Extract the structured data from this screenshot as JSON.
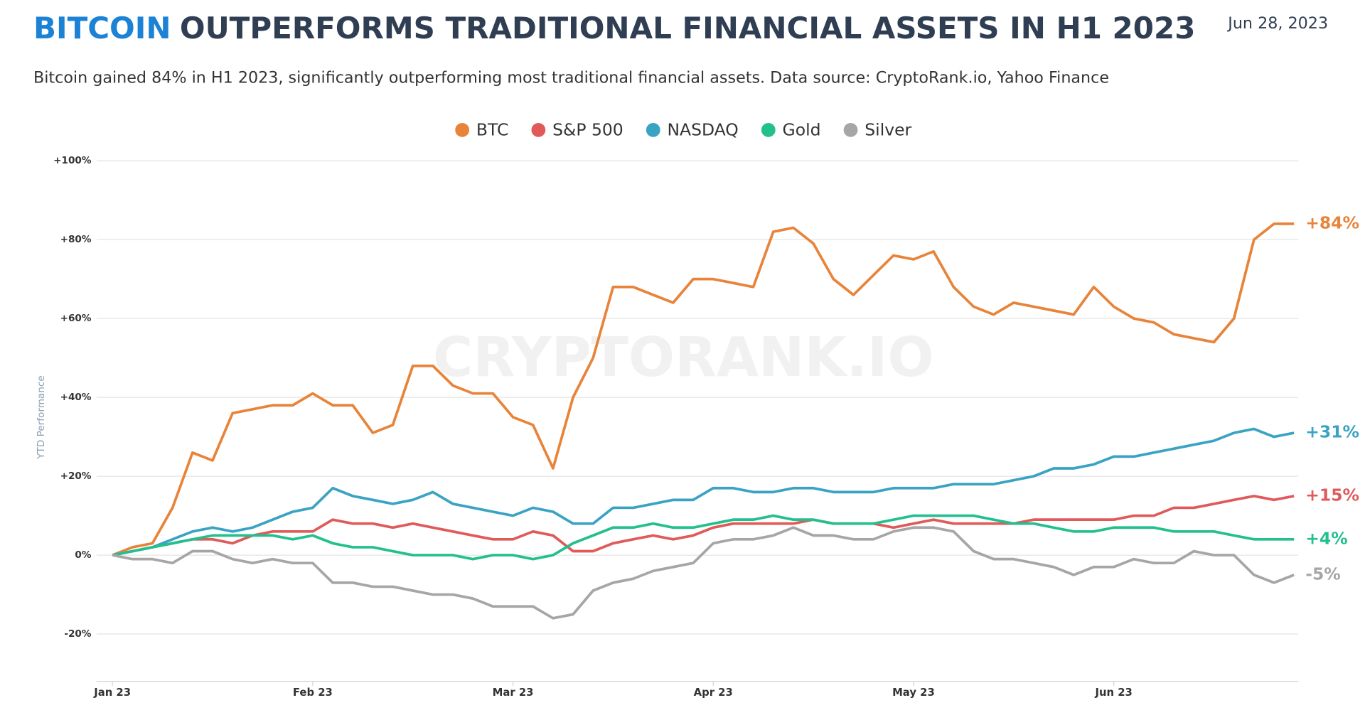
{
  "chart_data": {
    "type": "line",
    "title_highlight": "BITCOIN",
    "title": "OUTPERFORMS TRADITIONAL FINANCIAL ASSETS IN H1 2023",
    "date": "Jun 28, 2023",
    "subtitle": "Bitcoin gained 84% in H1 2023, significantly outperforming most traditional financial assets. Data source: CryptoRank.io, Yahoo Finance",
    "watermark": "CRYPTORANK.IO",
    "y_label": "YTD Performance",
    "grid": true,
    "legend": "top",
    "categories": [
      "Jan 23",
      null,
      null,
      null,
      null,
      null,
      null,
      null,
      null,
      null,
      "Feb 23",
      null,
      null,
      null,
      null,
      null,
      null,
      null,
      null,
      null,
      "Mar 23",
      null,
      null,
      null,
      null,
      null,
      null,
      null,
      null,
      null,
      "Apr 23",
      null,
      null,
      null,
      null,
      null,
      null,
      null,
      null,
      null,
      "May 23",
      null,
      null,
      null,
      null,
      null,
      null,
      null,
      null,
      null,
      "Jun 23",
      null,
      null,
      null,
      null,
      null,
      null,
      null,
      null,
      null
    ],
    "ylim": [
      -32,
      100
    ],
    "yticks": [
      {
        "value": -20,
        "label": "-20%"
      },
      {
        "value": 0,
        "label": "0%"
      },
      {
        "value": 20,
        "label": "+20%"
      },
      {
        "value": 40,
        "label": "+40%"
      },
      {
        "value": 60,
        "label": "+60%"
      },
      {
        "value": 80,
        "label": "+80%"
      },
      {
        "value": 100,
        "label": "+100%"
      }
    ],
    "series": [
      {
        "name": "BTC",
        "color": "#e8843a",
        "values": [
          0,
          2,
          3,
          12,
          26,
          24,
          36,
          37,
          38,
          38,
          41,
          38,
          38,
          31,
          33,
          48,
          48,
          43,
          41,
          41,
          35,
          33,
          22,
          40,
          50,
          68,
          68,
          66,
          64,
          70,
          70,
          69,
          68,
          82,
          83,
          79,
          70,
          66,
          71,
          76,
          75,
          77,
          68,
          63,
          61,
          64,
          63,
          62,
          61,
          68,
          63,
          60,
          59,
          56,
          55,
          54,
          60,
          80,
          84,
          84
        ],
        "value_labels": [
          null,
          null,
          null,
          null,
          null,
          null,
          null,
          null,
          null,
          null,
          null,
          null,
          null,
          null,
          null,
          null,
          null,
          null,
          null,
          null,
          null,
          null,
          null,
          null,
          null,
          null,
          null,
          null,
          null,
          null,
          null,
          null,
          null,
          null,
          null,
          null,
          null,
          null,
          null,
          null,
          null,
          null,
          null,
          null,
          null,
          null,
          null,
          null,
          null,
          null,
          null,
          null,
          null,
          null,
          null,
          null,
          null,
          null,
          null,
          "+84%"
        ]
      },
      {
        "name": "S&P 500",
        "color": "#e05a5a",
        "values": [
          0,
          1,
          2,
          3,
          4,
          4,
          3,
          5,
          6,
          6,
          6,
          9,
          8,
          8,
          7,
          8,
          7,
          6,
          5,
          4,
          4,
          6,
          5,
          1,
          1,
          3,
          4,
          5,
          4,
          5,
          7,
          8,
          8,
          8,
          8,
          9,
          8,
          8,
          8,
          7,
          8,
          9,
          8,
          8,
          8,
          8,
          9,
          9,
          9,
          9,
          9,
          10,
          10,
          12,
          12,
          13,
          14,
          15,
          14,
          15
        ],
        "value_labels": [
          null,
          null,
          null,
          null,
          null,
          null,
          null,
          null,
          null,
          null,
          null,
          null,
          null,
          null,
          null,
          null,
          null,
          null,
          null,
          null,
          null,
          null,
          null,
          null,
          null,
          null,
          null,
          null,
          null,
          null,
          null,
          null,
          null,
          null,
          null,
          null,
          null,
          null,
          null,
          null,
          null,
          null,
          null,
          null,
          null,
          null,
          null,
          null,
          null,
          null,
          null,
          null,
          null,
          null,
          null,
          null,
          null,
          null,
          null,
          "+15%"
        ]
      },
      {
        "name": "NASDAQ",
        "color": "#3aa3c4",
        "values": [
          0,
          1,
          2,
          4,
          6,
          7,
          6,
          7,
          9,
          11,
          12,
          17,
          15,
          14,
          13,
          14,
          16,
          13,
          12,
          11,
          10,
          12,
          11,
          8,
          8,
          12,
          12,
          13,
          14,
          14,
          17,
          17,
          16,
          16,
          17,
          17,
          16,
          16,
          16,
          17,
          17,
          17,
          18,
          18,
          18,
          19,
          20,
          22,
          22,
          23,
          25,
          25,
          26,
          27,
          28,
          29,
          31,
          32,
          30,
          31
        ],
        "value_labels": [
          null,
          null,
          null,
          null,
          null,
          null,
          null,
          null,
          null,
          null,
          null,
          null,
          null,
          null,
          null,
          null,
          null,
          null,
          null,
          null,
          null,
          null,
          null,
          null,
          null,
          null,
          null,
          null,
          null,
          null,
          null,
          null,
          null,
          null,
          null,
          null,
          null,
          null,
          null,
          null,
          null,
          null,
          null,
          null,
          null,
          null,
          null,
          null,
          null,
          null,
          null,
          null,
          null,
          null,
          null,
          null,
          null,
          null,
          null,
          "+31%"
        ]
      },
      {
        "name": "Gold",
        "color": "#22c08e",
        "values": [
          0,
          1,
          2,
          3,
          4,
          5,
          5,
          5,
          5,
          4,
          5,
          3,
          2,
          2,
          1,
          0,
          0,
          0,
          -1,
          0,
          0,
          -1,
          0,
          3,
          5,
          7,
          7,
          8,
          7,
          7,
          8,
          9,
          9,
          10,
          9,
          9,
          8,
          8,
          8,
          9,
          10,
          10,
          10,
          10,
          9,
          8,
          8,
          7,
          6,
          6,
          7,
          7,
          7,
          6,
          6,
          6,
          5,
          4,
          4,
          4
        ],
        "value_labels": [
          null,
          null,
          null,
          null,
          null,
          null,
          null,
          null,
          null,
          null,
          null,
          null,
          null,
          null,
          null,
          null,
          null,
          null,
          null,
          null,
          null,
          null,
          null,
          null,
          null,
          null,
          null,
          null,
          null,
          null,
          null,
          null,
          null,
          null,
          null,
          null,
          null,
          null,
          null,
          null,
          null,
          null,
          null,
          null,
          null,
          null,
          null,
          null,
          null,
          null,
          null,
          null,
          null,
          null,
          null,
          null,
          null,
          null,
          null,
          "+4%"
        ]
      },
      {
        "name": "Silver",
        "color": "#a6a6a6",
        "values": [
          0,
          -1,
          -1,
          -2,
          1,
          1,
          -1,
          -2,
          -1,
          -2,
          -2,
          -7,
          -7,
          -8,
          -8,
          -9,
          -10,
          -10,
          -11,
          -13,
          -13,
          -13,
          -16,
          -15,
          -9,
          -7,
          -6,
          -4,
          -3,
          -2,
          3,
          4,
          4,
          5,
          7,
          5,
          5,
          4,
          4,
          6,
          7,
          7,
          6,
          1,
          -1,
          -1,
          -2,
          -3,
          -5,
          -3,
          -3,
          -1,
          -2,
          -2,
          1,
          0,
          0,
          -5,
          -7,
          -5
        ],
        "value_labels": [
          null,
          null,
          null,
          null,
          null,
          null,
          null,
          null,
          null,
          null,
          null,
          null,
          null,
          null,
          null,
          null,
          null,
          null,
          null,
          null,
          null,
          null,
          null,
          null,
          null,
          null,
          null,
          null,
          null,
          null,
          null,
          null,
          null,
          null,
          null,
          null,
          null,
          null,
          null,
          null,
          null,
          null,
          null,
          null,
          null,
          null,
          null,
          null,
          null,
          null,
          null,
          null,
          null,
          null,
          null,
          null,
          null,
          null,
          null,
          "-5%"
        ]
      }
    ]
  }
}
